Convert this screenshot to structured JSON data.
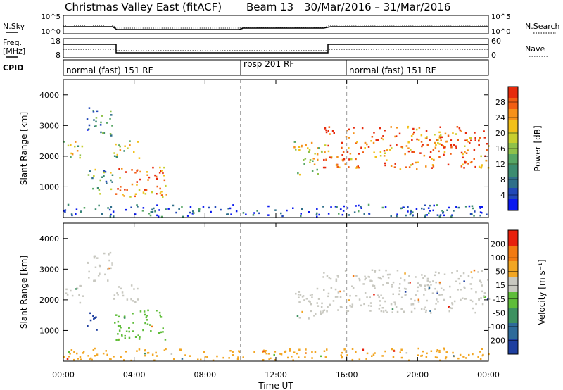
{
  "title": "Christmas Valley East (fitACF)",
  "beam_label": "Beam 13",
  "date_range": "30/Mar/2016 – 31/Mar/2016",
  "top_panels": {
    "nsky_label": "N.Sky",
    "nsearch_label": "N.Search",
    "freq_label_1": "Freq.",
    "freq_label_2": "[MHz]",
    "nave_label": "Nave",
    "cpid_label": "CPID",
    "left_ticks_nsky": [
      "10^5",
      "10^0"
    ],
    "right_ticks_nsky": [
      "10^5",
      "10^0"
    ],
    "left_ticks_freq": [
      "18",
      "8"
    ],
    "right_ticks_freq": [
      "60",
      "0"
    ],
    "cpid_segments": [
      {
        "start_hour": 0,
        "end_hour": 10,
        "label": "normal (fast) 151 RF"
      },
      {
        "start_hour": 10,
        "end_hour": 16,
        "label": "rbsp 201 RF"
      },
      {
        "start_hour": 16,
        "end_hour": 24,
        "label": "normal (fast) 151 RF"
      }
    ]
  },
  "chart_data": [
    {
      "type": "heatmap",
      "name": "Power",
      "ylabel": "Slant Range [km]",
      "xlim_hours": [
        0,
        24
      ],
      "ylim_km": [
        0,
        4500
      ],
      "yticks": [
        "1000",
        "2000",
        "3000",
        "4000"
      ],
      "colorbar": {
        "label": "Power [dB]",
        "ticks": [
          "28",
          "24",
          "20",
          "16",
          "12",
          "8",
          "4"
        ],
        "colors": [
          "#0a19ef",
          "#2148b8",
          "#2f6f8a",
          "#3c8c70",
          "#58a765",
          "#8fc14a",
          "#c8cf2f",
          "#f2c01a",
          "#f6911a",
          "#f25e12",
          "#e62a0c"
        ]
      },
      "echo_regions": [
        {
          "t0": 0.0,
          "t1": 1.1,
          "r0": 1900,
          "r1": 2550,
          "level": 0.55
        },
        {
          "t0": 1.3,
          "t1": 2.8,
          "r0": 2650,
          "r1": 3600,
          "level": 0.3
        },
        {
          "t0": 1.3,
          "t1": 2.8,
          "r0": 800,
          "r1": 1600,
          "level": 0.4
        },
        {
          "t0": 2.8,
          "t1": 4.3,
          "r0": 1950,
          "r1": 2550,
          "level": 0.55
        },
        {
          "t0": 2.8,
          "t1": 5.8,
          "r0": 700,
          "r1": 1700,
          "level": 0.8
        },
        {
          "t0": 13.0,
          "t1": 14.6,
          "r0": 1400,
          "r1": 2500,
          "level": 0.6
        },
        {
          "t0": 14.6,
          "t1": 24.0,
          "r0": 1600,
          "r1": 3000,
          "level": 0.85
        },
        {
          "t0": 0.0,
          "t1": 24.0,
          "r0": 50,
          "r1": 450,
          "level": 0.15
        }
      ]
    },
    {
      "type": "heatmap",
      "name": "Velocity",
      "xlabel": "Time UT",
      "ylabel": "Slant Range [km]",
      "xlim_hours": [
        0,
        24
      ],
      "ylim_km": [
        0,
        4500
      ],
      "xticks": [
        "00:00",
        "04:00",
        "08:00",
        "12:00",
        "16:00",
        "20:00",
        "00:00"
      ],
      "yticks": [
        "1000",
        "2000",
        "3000",
        "4000"
      ],
      "colorbar": {
        "label": "Velocity [m s⁻¹]",
        "ticks": [
          "200",
          "100",
          "50",
          "15",
          "-15",
          "-50",
          "-100",
          "-200"
        ],
        "colors": [
          "#1e3fa0",
          "#2e6b9a",
          "#3d9160",
          "#5fbd3a",
          "#c8c8c0",
          "#f2a623",
          "#f27a12",
          "#e8200c"
        ]
      },
      "echo_regions": [
        {
          "t0": 0.0,
          "t1": 1.1,
          "r0": 1900,
          "r1": 2550,
          "color": "#c8c8c0"
        },
        {
          "t0": 1.3,
          "t1": 2.8,
          "r0": 2650,
          "r1": 3600,
          "color": "#c8c8c0"
        },
        {
          "t0": 1.3,
          "t1": 2.0,
          "r0": 1000,
          "r1": 1600,
          "color": "#1e3fa0"
        },
        {
          "t0": 2.8,
          "t1": 4.3,
          "r0": 1950,
          "r1": 2550,
          "color": "#c8c8c0"
        },
        {
          "t0": 2.8,
          "t1": 5.8,
          "r0": 700,
          "r1": 1700,
          "color": "#5fbd3a"
        },
        {
          "t0": 13.0,
          "t1": 14.6,
          "r0": 1400,
          "r1": 2500,
          "color": "#c8c8c0"
        },
        {
          "t0": 14.6,
          "t1": 24.0,
          "r0": 1600,
          "r1": 3000,
          "color": "#c8c8c0"
        },
        {
          "t0": 0.0,
          "t1": 24.0,
          "r0": 50,
          "r1": 450,
          "color": "#f2a623"
        }
      ]
    }
  ]
}
